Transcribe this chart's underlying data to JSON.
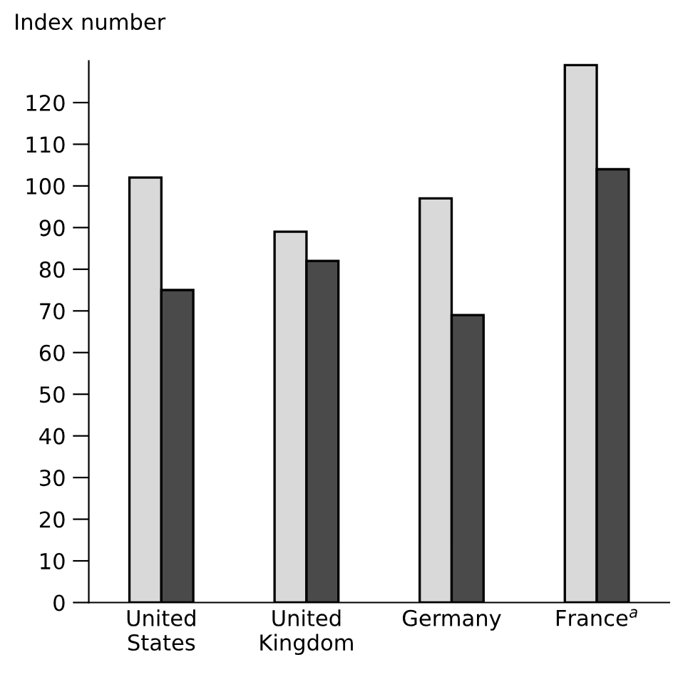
{
  "chart_data": {
    "type": "bar",
    "ylabel": "Index number",
    "categories": [
      "United\nStates",
      "United\nKingdom",
      "Germany",
      "France$^{a}$"
    ],
    "series": [
      {
        "color": "#d9d9d9",
        "values": [
          102,
          89,
          97,
          129
        ]
      },
      {
        "color": "#4a4a4a",
        "values": [
          75,
          82,
          69,
          104
        ]
      }
    ],
    "ylim": [
      0,
      130
    ],
    "yticks": [
      0,
      10,
      20,
      30,
      40,
      50,
      60,
      70,
      80,
      90,
      100,
      110,
      120
    ],
    "grid": false,
    "legend": false
  }
}
